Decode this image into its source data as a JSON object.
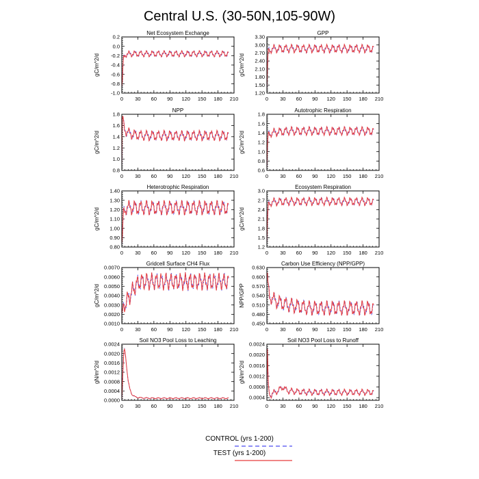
{
  "figure": {
    "title": "Central U.S. (30-50N,105-90W)"
  },
  "legend": {
    "control_label": "CONTROL (yrs 1-200)",
    "test_label": "TEST (yrs 1-200)",
    "control_color": "#4b4bf0",
    "test_color": "#e83c3c"
  },
  "chart_data": [
    {
      "type": "line",
      "title": "Net Ecosystem Exchange",
      "xlabel": "",
      "ylabel": "gC/m^2/d",
      "xlim": [
        0,
        210
      ],
      "xticks": [
        0,
        30,
        60,
        90,
        120,
        150,
        180,
        210
      ],
      "ylim": [
        -1.0,
        0.2
      ],
      "yticks": [
        -1.0,
        -0.8,
        -0.6,
        -0.4,
        -0.2,
        0.0,
        0.2
      ],
      "ydec": 1,
      "series": [
        {
          "name": "CONTROL (yrs 1-200)",
          "color": "#4b4bf0"
        },
        {
          "name": "TEST (yrs 1-200)",
          "color": "#e83c3c"
        }
      ],
      "x": [
        0,
        1,
        2,
        3,
        4,
        6,
        8,
        10,
        20,
        40,
        60,
        80,
        100,
        120,
        140,
        160,
        180,
        200
      ],
      "y": [
        -0.88,
        -0.75,
        -0.45,
        -0.3,
        -0.22,
        -0.18,
        -0.17,
        -0.17,
        -0.16,
        -0.16,
        -0.16,
        -0.16,
        -0.16,
        -0.16,
        -0.16,
        -0.16,
        -0.16,
        -0.16
      ],
      "amplitude": 0.05,
      "period": 11
    },
    {
      "type": "line",
      "title": "GPP",
      "xlabel": "",
      "ylabel": "gC/m^2/d",
      "xlim": [
        0,
        210
      ],
      "xticks": [
        0,
        30,
        60,
        90,
        120,
        150,
        180,
        210
      ],
      "ylim": [
        1.2,
        3.3
      ],
      "yticks": [
        1.2,
        1.5,
        1.8,
        2.1,
        2.4,
        2.7,
        3.0,
        3.3
      ],
      "ydec": 2,
      "series": [
        {
          "name": "CONTROL (yrs 1-200)",
          "color": "#4b4bf0"
        },
        {
          "name": "TEST (yrs 1-200)",
          "color": "#e83c3c"
        }
      ],
      "x": [
        0,
        1,
        2,
        3,
        5,
        8,
        10,
        20,
        40,
        60,
        80,
        100,
        120,
        140,
        160,
        180,
        200
      ],
      "y": [
        1.3,
        2.1,
        2.6,
        2.75,
        2.8,
        2.84,
        2.85,
        2.86,
        2.86,
        2.86,
        2.86,
        2.86,
        2.86,
        2.86,
        2.86,
        2.86,
        2.86
      ],
      "amplitude": 0.12,
      "period": 11
    },
    {
      "type": "line",
      "title": "NPP",
      "xlabel": "",
      "ylabel": "gC/m^2/d",
      "xlim": [
        0,
        210
      ],
      "xticks": [
        0,
        30,
        60,
        90,
        120,
        150,
        180,
        210
      ],
      "ylim": [
        0.8,
        1.8
      ],
      "yticks": [
        0.8,
        1.0,
        1.2,
        1.4,
        1.6,
        1.8
      ],
      "ydec": 1,
      "series": [
        {
          "name": "CONTROL (yrs 1-200)",
          "color": "#4b4bf0"
        },
        {
          "name": "TEST (yrs 1-200)",
          "color": "#e83c3c"
        }
      ],
      "x": [
        0,
        1,
        2,
        3,
        5,
        8,
        10,
        20,
        40,
        60,
        80,
        100,
        120,
        140,
        160,
        180,
        200
      ],
      "y": [
        0.85,
        1.7,
        1.75,
        1.65,
        1.55,
        1.5,
        1.48,
        1.44,
        1.42,
        1.42,
        1.42,
        1.42,
        1.42,
        1.42,
        1.42,
        1.42,
        1.42
      ],
      "amplitude": 0.07,
      "period": 11
    },
    {
      "type": "line",
      "title": "Autotrophic Respiration",
      "xlabel": "",
      "ylabel": "gC/m^2/d",
      "xlim": [
        0,
        210
      ],
      "xticks": [
        0,
        30,
        60,
        90,
        120,
        150,
        180,
        210
      ],
      "ylim": [
        0.6,
        1.8
      ],
      "yticks": [
        0.6,
        0.8,
        1.0,
        1.2,
        1.4,
        1.6,
        1.8
      ],
      "ydec": 1,
      "series": [
        {
          "name": "CONTROL (yrs 1-200)",
          "color": "#4b4bf0"
        },
        {
          "name": "TEST (yrs 1-200)",
          "color": "#e83c3c"
        }
      ],
      "x": [
        0,
        1,
        2,
        3,
        5,
        8,
        10,
        20,
        40,
        60,
        80,
        100,
        120,
        140,
        160,
        180,
        200
      ],
      "y": [
        0.62,
        1.1,
        1.3,
        1.36,
        1.38,
        1.4,
        1.4,
        1.42,
        1.44,
        1.44,
        1.44,
        1.44,
        1.44,
        1.44,
        1.44,
        1.44,
        1.44
      ],
      "amplitude": 0.07,
      "period": 11
    },
    {
      "type": "line",
      "title": "Heterotrophic Respiration",
      "xlabel": "",
      "ylabel": "gC/m^2/d",
      "xlim": [
        0,
        210
      ],
      "xticks": [
        0,
        30,
        60,
        90,
        120,
        150,
        180,
        210
      ],
      "ylim": [
        0.8,
        1.4
      ],
      "yticks": [
        0.8,
        0.9,
        1.0,
        1.1,
        1.2,
        1.3,
        1.4
      ],
      "ydec": 2,
      "series": [
        {
          "name": "CONTROL (yrs 1-200)",
          "color": "#4b4bf0"
        },
        {
          "name": "TEST (yrs 1-200)",
          "color": "#e83c3c"
        }
      ],
      "x": [
        0,
        1,
        2,
        3,
        5,
        8,
        10,
        20,
        40,
        60,
        80,
        100,
        120,
        140,
        160,
        180,
        200
      ],
      "y": [
        0.83,
        0.9,
        1.05,
        1.15,
        1.2,
        1.22,
        1.22,
        1.22,
        1.22,
        1.22,
        1.22,
        1.22,
        1.22,
        1.22,
        1.22,
        1.22,
        1.22
      ],
      "amplitude": 0.06,
      "period": 11
    },
    {
      "type": "line",
      "title": "Ecosystem Respiration",
      "xlabel": "",
      "ylabel": "gC/m^2/d",
      "xlim": [
        0,
        210
      ],
      "xticks": [
        0,
        30,
        60,
        90,
        120,
        150,
        180,
        210
      ],
      "ylim": [
        1.2,
        3.0
      ],
      "yticks": [
        1.2,
        1.5,
        1.8,
        2.1,
        2.4,
        2.7,
        3.0
      ],
      "ydec": 1,
      "series": [
        {
          "name": "CONTROL (yrs 1-200)",
          "color": "#4b4bf0"
        },
        {
          "name": "TEST (yrs 1-200)",
          "color": "#e83c3c"
        }
      ],
      "x": [
        0,
        1,
        2,
        3,
        5,
        8,
        10,
        20,
        40,
        60,
        80,
        100,
        120,
        140,
        160,
        180,
        200
      ],
      "y": [
        1.3,
        2.0,
        2.4,
        2.55,
        2.6,
        2.63,
        2.64,
        2.65,
        2.66,
        2.66,
        2.66,
        2.66,
        2.66,
        2.66,
        2.66,
        2.66,
        2.66
      ],
      "amplitude": 0.1,
      "period": 11
    },
    {
      "type": "line",
      "title": "Gridcell Surface CH4 Flux",
      "xlabel": "",
      "ylabel": "gC/m^2/d",
      "xlim": [
        0,
        210
      ],
      "xticks": [
        0,
        30,
        60,
        90,
        120,
        150,
        180,
        210
      ],
      "ylim": [
        0.001,
        0.007
      ],
      "yticks": [
        0.001,
        0.002,
        0.003,
        0.004,
        0.005,
        0.006,
        0.007
      ],
      "ydec": 4,
      "series": [
        {
          "name": "CONTROL (yrs 1-200)",
          "color": "#4b4bf0"
        },
        {
          "name": "TEST (yrs 1-200)",
          "color": "#e83c3c"
        }
      ],
      "x": [
        0,
        2,
        5,
        10,
        15,
        20,
        25,
        30,
        35,
        40,
        60,
        80,
        100,
        120,
        140,
        160,
        180,
        200
      ],
      "y": [
        0.002,
        0.0025,
        0.003,
        0.0035,
        0.004,
        0.0045,
        0.005,
        0.0053,
        0.0055,
        0.0055,
        0.0055,
        0.0055,
        0.0055,
        0.0055,
        0.0055,
        0.0055,
        0.0055,
        0.0055
      ],
      "amplitude": 0.0007,
      "period": 9
    },
    {
      "type": "line",
      "title": "Carbon Use Efficiency (NPP/GPP)",
      "xlabel": "",
      "ylabel": "NPP/GPP",
      "xlim": [
        0,
        210
      ],
      "xticks": [
        0,
        30,
        60,
        90,
        120,
        150,
        180,
        210
      ],
      "ylim": [
        0.45,
        0.63
      ],
      "yticks": [
        0.45,
        0.48,
        0.51,
        0.54,
        0.57,
        0.6,
        0.63
      ],
      "ydec": 3,
      "series": [
        {
          "name": "CONTROL (yrs 1-200)",
          "color": "#4b4bf0"
        },
        {
          "name": "TEST (yrs 1-200)",
          "color": "#e83c3c"
        }
      ],
      "x": [
        0,
        1,
        2,
        3,
        5,
        8,
        10,
        20,
        30,
        40,
        60,
        80,
        100,
        120,
        140,
        160,
        180,
        200
      ],
      "y": [
        0.6,
        0.61,
        0.58,
        0.56,
        0.54,
        0.535,
        0.53,
        0.52,
        0.515,
        0.51,
        0.505,
        0.5,
        0.5,
        0.5,
        0.5,
        0.5,
        0.5,
        0.5
      ],
      "amplitude": 0.018,
      "period": 11
    },
    {
      "type": "line",
      "title": "Soil NO3 Pool Loss to Leaching",
      "xlabel": "",
      "ylabel": "gN/m^2/d",
      "xlim": [
        0,
        210
      ],
      "xticks": [
        0,
        30,
        60,
        90,
        120,
        150,
        180,
        210
      ],
      "ylim": [
        0.0,
        0.0024
      ],
      "yticks": [
        0.0,
        0.0004,
        0.0008,
        0.0012,
        0.0016,
        0.002,
        0.0024
      ],
      "ydec": 4,
      "series": [
        {
          "name": "CONTROL (yrs 1-200)",
          "color": "#4b4bf0"
        },
        {
          "name": "TEST (yrs 1-200)",
          "color": "#e83c3c"
        }
      ],
      "x": [
        0,
        2,
        4,
        5,
        6,
        8,
        10,
        12,
        15,
        18,
        20,
        25,
        30,
        40,
        60,
        80,
        100,
        120,
        140,
        160,
        180,
        200
      ],
      "y": [
        0.0,
        0.0012,
        0.0021,
        0.0022,
        0.0021,
        0.0017,
        0.0012,
        0.0008,
        0.0005,
        0.0003,
        0.00022,
        0.00015,
        0.00012,
        0.0001,
        9e-05,
        9e-05,
        9e-05,
        9e-05,
        9e-05,
        9e-05,
        9e-05,
        9e-05
      ],
      "amplitude": 2e-05,
      "period": 11
    },
    {
      "type": "line",
      "title": "Soil NO3 Pool Loss to Runoff",
      "xlabel": "",
      "ylabel": "gN/m^2/d",
      "xlim": [
        0,
        210
      ],
      "xticks": [
        0,
        30,
        60,
        90,
        120,
        150,
        180,
        210
      ],
      "ylim": [
        0.0003,
        0.0024
      ],
      "yticks": [
        0.0004,
        0.0008,
        0.0012,
        0.0016,
        0.002,
        0.0024
      ],
      "ydec": 4,
      "series": [
        {
          "name": "CONTROL (yrs 1-200)",
          "color": "#4b4bf0"
        },
        {
          "name": "TEST (yrs 1-200)",
          "color": "#e83c3c"
        }
      ],
      "x": [
        0,
        1,
        2,
        3,
        4,
        5,
        6,
        8,
        10,
        15,
        20,
        30,
        35,
        40,
        60,
        80,
        100,
        120,
        140,
        160,
        180,
        200
      ],
      "y": [
        0.0005,
        0.0022,
        0.0014,
        0.0008,
        0.0006,
        0.00055,
        0.0005,
        0.0005,
        0.00055,
        0.0006,
        0.00065,
        0.0008,
        0.0007,
        0.00065,
        0.00062,
        0.0006,
        0.0006,
        0.0006,
        0.0006,
        0.0006,
        0.0006,
        0.0006
      ],
      "amplitude": 9e-05,
      "period": 11
    }
  ]
}
